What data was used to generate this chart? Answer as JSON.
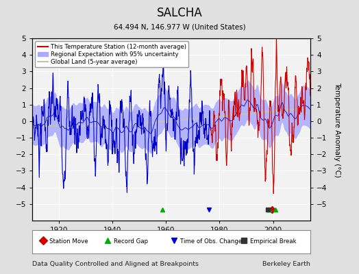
{
  "title": "SALCHA",
  "subtitle": "64.494 N, 146.977 W (United States)",
  "ylabel": "Temperature Anomaly (°C)",
  "footer_left": "Data Quality Controlled and Aligned at Breakpoints",
  "footer_right": "Berkeley Earth",
  "xlim": [
    1910,
    2014
  ],
  "ylim": [
    -6,
    5
  ],
  "xticks": [
    1920,
    1940,
    1960,
    1980,
    2000
  ],
  "yticks": [
    -5,
    -4,
    -3,
    -2,
    -1,
    0,
    1,
    2,
    3,
    4,
    5
  ],
  "bg_color": "#e0e0e0",
  "plot_bg_color": "#f2f2f2",
  "grid_color": "#ffffff",
  "blue_line_color": "#0000cc",
  "red_line_color": "#cc0000",
  "band_color": "#aaaaff",
  "global_land_color": "#c0c0c0",
  "split_year": 1976.5,
  "legend_labels": [
    "This Temperature Station (12-month average)",
    "Regional Expectation with 95% uncertainty",
    "Global Land (5-year average)"
  ],
  "marker_legend": [
    {
      "label": "Station Move",
      "color": "#cc0000",
      "marker": "D"
    },
    {
      "label": "Record Gap",
      "color": "#00aa00",
      "marker": "^"
    },
    {
      "label": "Time of Obs. Change",
      "color": "#0000cc",
      "marker": "v"
    },
    {
      "label": "Empirical Break",
      "color": "#333333",
      "marker": "s"
    }
  ],
  "event_markers": [
    {
      "year": 1999.5,
      "color": "#cc0000",
      "marker": "D"
    },
    {
      "year": 1958.5,
      "color": "#00aa00",
      "marker": "^"
    },
    {
      "year": 1976.0,
      "color": "#0000cc",
      "marker": "v"
    },
    {
      "year": 1998.5,
      "color": "#00aa00",
      "marker": "^"
    },
    {
      "year": 2001.0,
      "color": "#00aa00",
      "marker": "^"
    },
    {
      "year": 1998.0,
      "color": "#333333",
      "marker": "s"
    }
  ]
}
